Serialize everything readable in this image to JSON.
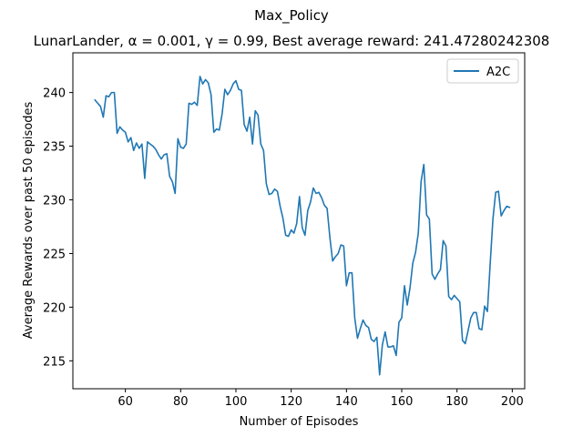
{
  "chart_data": {
    "type": "line",
    "title": "Max_Policy",
    "subtitle": "LunarLander, α = 0.001, γ = 0.99,  Best average reward: 241.47280242308",
    "xlabel": "Number of Episodes",
    "ylabel": "Average Rewards over past 50 episodes",
    "xlim": [
      41,
      204.5
    ],
    "ylim": [
      212.4,
      243.7
    ],
    "xticks": [
      60,
      80,
      100,
      120,
      140,
      160,
      180,
      200
    ],
    "yticks": [
      215,
      220,
      225,
      230,
      235,
      240
    ],
    "legend_position": "top-right",
    "grid": false,
    "series": [
      {
        "name": "A2C",
        "color": "#1f77b4",
        "x": [
          49,
          50,
          51,
          52,
          53,
          54,
          55,
          56,
          57,
          58,
          59,
          60,
          61,
          62,
          63,
          64,
          65,
          66,
          67,
          68,
          69,
          70,
          71,
          72,
          73,
          74,
          75,
          76,
          77,
          78,
          79,
          80,
          81,
          82,
          83,
          84,
          85,
          86,
          87,
          88,
          89,
          90,
          91,
          92,
          93,
          94,
          95,
          96,
          97,
          98,
          99,
          100,
          101,
          102,
          103,
          104,
          105,
          106,
          107,
          108,
          109,
          110,
          111,
          112,
          113,
          114,
          115,
          116,
          117,
          118,
          119,
          120,
          121,
          122,
          123,
          124,
          125,
          126,
          127,
          128,
          129,
          130,
          131,
          132,
          133,
          134,
          135,
          136,
          137,
          138,
          139,
          140,
          141,
          142,
          143,
          144,
          145,
          146,
          147,
          148,
          149,
          150,
          151,
          152,
          153,
          154,
          155,
          156,
          157,
          158,
          159,
          160,
          161,
          162,
          163,
          164,
          165,
          166,
          167,
          168,
          169,
          170,
          171,
          172,
          173,
          174,
          175,
          176,
          177,
          178,
          179,
          180,
          181,
          182,
          183,
          184,
          185,
          186,
          187,
          188,
          189,
          190,
          191,
          192,
          193,
          194,
          195,
          196,
          197,
          198,
          199
        ],
        "values": [
          239.3,
          239.0,
          238.7,
          237.7,
          239.7,
          239.6,
          240.0,
          240.0,
          236.2,
          236.8,
          236.5,
          236.3,
          235.4,
          235.8,
          234.6,
          235.3,
          234.8,
          235.2,
          232.0,
          235.4,
          235.2,
          235.0,
          234.7,
          234.2,
          233.8,
          234.2,
          234.3,
          232.2,
          231.7,
          230.6,
          235.7,
          234.9,
          234.8,
          235.2,
          239.0,
          238.9,
          239.1,
          238.8,
          241.5,
          240.8,
          241.2,
          240.9,
          239.8,
          236.3,
          236.6,
          236.5,
          238.0,
          240.3,
          239.8,
          240.2,
          240.8,
          241.1,
          240.3,
          240.2,
          237.0,
          236.4,
          237.7,
          235.2,
          238.3,
          237.9,
          235.2,
          234.6,
          231.5,
          230.5,
          230.6,
          231.0,
          230.8,
          229.4,
          228.3,
          226.7,
          226.6,
          227.2,
          226.9,
          227.8,
          230.3,
          227.4,
          226.7,
          229.0,
          229.8,
          231.1,
          230.6,
          230.7,
          230.2,
          229.5,
          229.2,
          226.5,
          224.3,
          224.7,
          225.0,
          225.8,
          225.7,
          222.0,
          223.2,
          223.2,
          219.0,
          217.1,
          218.0,
          218.8,
          218.3,
          218.1,
          217.0,
          216.8,
          217.2,
          213.7,
          216.5,
          217.7,
          216.3,
          216.3,
          216.4,
          215.5,
          218.6,
          219.0,
          222.0,
          220.2,
          221.8,
          224.1,
          225.1,
          226.9,
          231.7,
          233.3,
          228.6,
          228.2,
          223.1,
          222.6,
          223.1,
          223.5,
          226.2,
          225.7,
          221.0,
          220.7,
          221.1,
          220.8,
          220.5,
          216.9,
          216.6,
          217.8,
          219.0,
          219.5,
          219.5,
          218.0,
          217.9,
          220.1,
          219.6,
          224.0,
          228.2,
          230.7,
          230.8,
          228.5,
          229.0,
          229.4,
          229.3
        ]
      }
    ]
  }
}
